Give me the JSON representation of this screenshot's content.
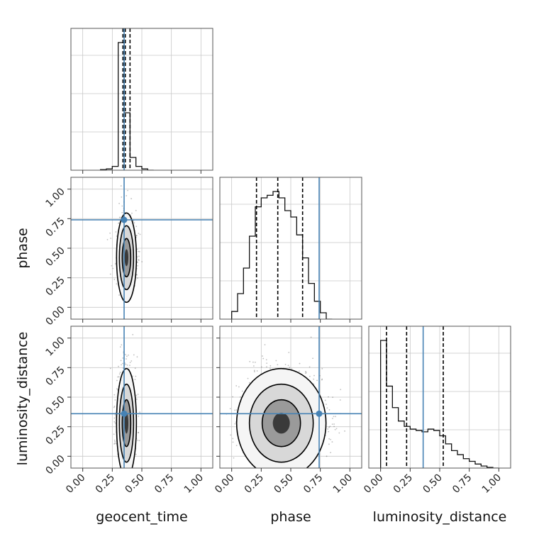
{
  "chart_data": {
    "type": "corner",
    "parameters": [
      "geocent_time",
      "phase",
      "luminosity_distance"
    ],
    "axis_range": [
      -0.1,
      1.1
    ],
    "ticks": [
      0.0,
      0.25,
      0.5,
      0.75,
      1.0
    ],
    "tick_labels": [
      "0.00",
      "0.25",
      "0.50",
      "0.75",
      "1.00"
    ],
    "truths": {
      "geocent_time": 0.35,
      "phase": 0.74,
      "luminosity_distance": 0.36
    },
    "truth_color": "#4682b4",
    "quantiles": {
      "geocent_time": [
        0.34,
        0.36,
        0.4
      ],
      "phase": [
        0.21,
        0.39,
        0.6
      ],
      "luminosity_distance": [
        0.05,
        0.22,
        0.53
      ]
    },
    "grid": true,
    "histograms": {
      "geocent_time": {
        "bins": [
          [
            0.15,
            0.2
          ],
          [
            0.2,
            0.25
          ],
          [
            0.25,
            0.3
          ],
          [
            0.3,
            0.35
          ],
          [
            0.35,
            0.4
          ],
          [
            0.4,
            0.45
          ],
          [
            0.45,
            0.5
          ],
          [
            0.5,
            0.55
          ],
          [
            0.55,
            0.6
          ]
        ],
        "counts": [
          0.005,
          0.01,
          0.03,
          1.0,
          0.45,
          0.1,
          0.03,
          0.01,
          0.0
        ]
      },
      "phase": {
        "bins": [
          [
            0.0,
            0.05
          ],
          [
            0.05,
            0.1
          ],
          [
            0.1,
            0.15
          ],
          [
            0.15,
            0.2
          ],
          [
            0.2,
            0.25
          ],
          [
            0.25,
            0.3
          ],
          [
            0.3,
            0.35
          ],
          [
            0.35,
            0.4
          ],
          [
            0.4,
            0.45
          ],
          [
            0.45,
            0.5
          ],
          [
            0.5,
            0.55
          ],
          [
            0.55,
            0.6
          ],
          [
            0.6,
            0.65
          ],
          [
            0.65,
            0.7
          ],
          [
            0.7,
            0.75
          ],
          [
            0.75,
            0.8
          ],
          [
            0.8,
            0.85
          ]
        ],
        "counts": [
          0.06,
          0.2,
          0.4,
          0.65,
          0.88,
          0.95,
          0.97,
          1.0,
          0.95,
          0.85,
          0.8,
          0.66,
          0.48,
          0.28,
          0.14,
          0.05,
          0.0
        ]
      },
      "luminosity_distance": {
        "bins": [
          [
            0.0,
            0.05
          ],
          [
            0.05,
            0.1
          ],
          [
            0.1,
            0.15
          ],
          [
            0.15,
            0.2
          ],
          [
            0.2,
            0.25
          ],
          [
            0.25,
            0.3
          ],
          [
            0.3,
            0.35
          ],
          [
            0.35,
            0.4
          ],
          [
            0.4,
            0.45
          ],
          [
            0.45,
            0.5
          ],
          [
            0.5,
            0.55
          ],
          [
            0.55,
            0.6
          ],
          [
            0.6,
            0.65
          ],
          [
            0.65,
            0.7
          ],
          [
            0.7,
            0.75
          ],
          [
            0.75,
            0.8
          ],
          [
            0.8,
            0.85
          ],
          [
            0.85,
            0.9
          ],
          [
            0.9,
            0.95
          ],
          [
            0.95,
            1.0
          ]
        ],
        "counts": [
          0.95,
          0.61,
          0.45,
          0.35,
          0.31,
          0.29,
          0.28,
          0.27,
          0.29,
          0.28,
          0.24,
          0.18,
          0.13,
          0.1,
          0.07,
          0.05,
          0.03,
          0.015,
          0.005,
          0.0
        ]
      }
    },
    "scatter_2d": {
      "phase_vs_geocent_time": {
        "x_mean": 0.37,
        "x_std": 0.04,
        "y_mean": 0.42,
        "y_std": 0.18
      },
      "luminosity_distance_vs_geocent_time": {
        "x_mean": 0.37,
        "x_std": 0.04,
        "y_mean": 0.28,
        "y_std": 0.22
      },
      "luminosity_distance_vs_phase": {
        "x_mean": 0.42,
        "x_std": 0.18,
        "y_mean": 0.28,
        "y_std": 0.22
      }
    }
  }
}
